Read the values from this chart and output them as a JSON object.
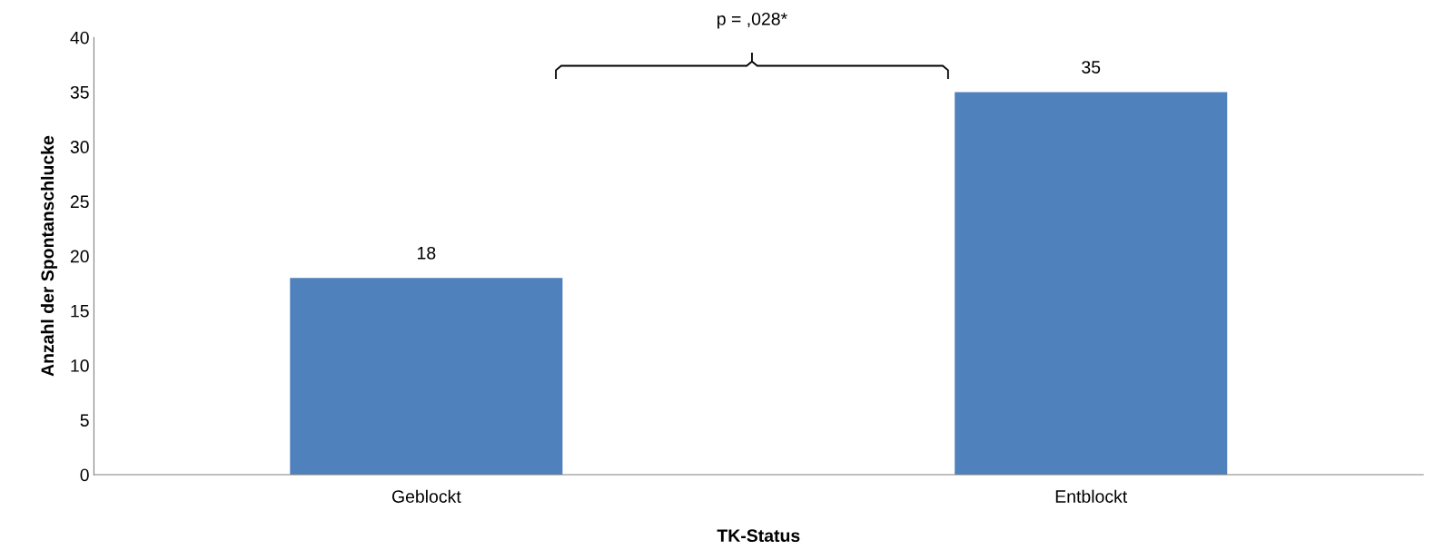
{
  "chart_data": {
    "type": "bar",
    "categories": [
      "Geblockt",
      "Entblockt"
    ],
    "values": [
      18,
      35
    ],
    "color": "#4f81bd",
    "xlabel": "TK-Status",
    "ylabel": "Anzahl der Spontanschlucke",
    "ylim": [
      0,
      40
    ],
    "yticks": [
      0,
      5,
      10,
      15,
      20,
      25,
      30,
      35,
      40
    ],
    "grid": false,
    "data_labels": true,
    "annotations": [
      "p = ,028*"
    ]
  }
}
